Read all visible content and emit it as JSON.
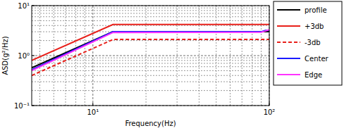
{
  "chart_data": {
    "type": "line",
    "x_label": "Frequency(Hz)",
    "y_label": "ASD(g²/Hz)",
    "x": [
      4.5,
      13,
      90,
      95,
      100
    ],
    "series": [
      {
        "name": "profile",
        "color": "#000000",
        "line_style": "solid",
        "values": [
          0.57,
          3.0,
          3.0,
          3.0,
          3.0
        ]
      },
      {
        "name": "+3db",
        "color": "#e8201a",
        "line_style": "solid",
        "values": [
          0.8,
          4.2,
          4.2,
          4.2,
          4.2
        ]
      },
      {
        "name": "-3db",
        "color": "#e8201a",
        "line_style": "dashed",
        "values": [
          0.4,
          2.1,
          2.1,
          2.1,
          2.1
        ]
      },
      {
        "name": "Center",
        "color": "#1a1aff",
        "line_style": "solid",
        "values": [
          0.52,
          3.0,
          3.0,
          3.2,
          3.2
        ]
      },
      {
        "name": "Edge",
        "color": "#ff33ff",
        "line_style": "solid",
        "values": [
          0.5,
          2.9,
          2.95,
          3.1,
          3.3
        ]
      }
    ],
    "xlim": [
      4.5,
      100
    ],
    "ylim": [
      0.1,
      10
    ],
    "xticks": [
      {
        "value": 10,
        "label": "10¹"
      },
      {
        "value": 100,
        "label": "10²"
      }
    ],
    "yticks": [
      {
        "value": 0.1,
        "label": "10⁻¹"
      },
      {
        "value": 1,
        "label": "10⁰"
      },
      {
        "value": 10,
        "label": "10¹"
      }
    ],
    "log": true,
    "grid": true,
    "legend": "right"
  }
}
